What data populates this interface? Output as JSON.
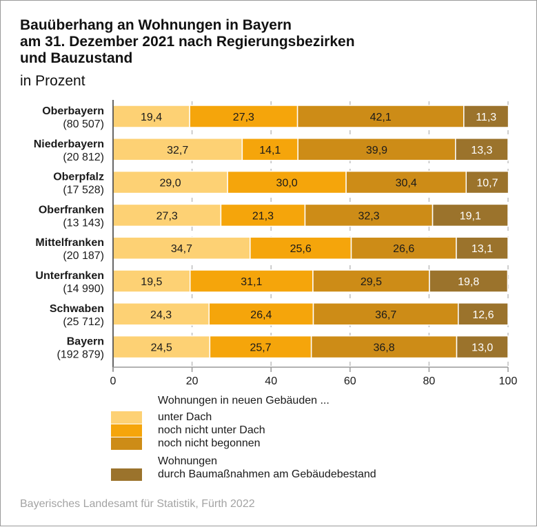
{
  "chart_data": {
    "type": "bar",
    "orientation": "horizontal",
    "stacked": true,
    "title": "Bauüberhang an Wohnungen in Bayern am 31. Dezember 2021 nach Regierungsbezirken und Bauzustand",
    "title_lines": [
      "Bauüberhang an Wohnungen in Bayern",
      "am 31. Dezember 2021 nach Regierungsbezirken",
      "und Bauzustand"
    ],
    "subtitle": "in Prozent",
    "xlabel": "",
    "ylabel": "",
    "xlim": [
      0,
      100
    ],
    "xticks": [
      0,
      20,
      40,
      60,
      80,
      100
    ],
    "grid": true,
    "categories": [
      "Oberbayern",
      "Niederbayern",
      "Oberpfalz",
      "Oberfranken",
      "Mittelfranken",
      "Unterfranken",
      "Schwaben",
      "Bayern"
    ],
    "category_counts": [
      "(80 507)",
      "(20 812)",
      "(17 528)",
      "(13 143)",
      "(20 187)",
      "(14 990)",
      "(25 712)",
      "(192 879)"
    ],
    "series": [
      {
        "name": "unter Dach",
        "color": "#fdd174",
        "label_color": "#1a1a1a",
        "values": [
          19.4,
          32.7,
          29.0,
          27.3,
          34.7,
          19.5,
          24.3,
          24.5
        ],
        "labels": [
          "19,4",
          "32,7",
          "29,0",
          "27,3",
          "34,7",
          "19,5",
          "24,3",
          "24,5"
        ]
      },
      {
        "name": "noch nicht unter Dach",
        "color": "#f5a50b",
        "label_color": "#1a1a1a",
        "values": [
          27.3,
          14.1,
          30.0,
          21.3,
          25.6,
          31.1,
          26.4,
          25.7
        ],
        "labels": [
          "27,3",
          "14,1",
          "30,0",
          "21,3",
          "25,6",
          "31,1",
          "26,4",
          "25,7"
        ]
      },
      {
        "name": "noch nicht begonnen",
        "color": "#cd8c17",
        "label_color": "#1a1a1a",
        "values": [
          42.1,
          39.9,
          30.4,
          32.3,
          26.6,
          29.5,
          36.7,
          36.8
        ],
        "labels": [
          "42,1",
          "39,9",
          "30,4",
          "32,3",
          "26,6",
          "29,5",
          "36,7",
          "36,8"
        ]
      },
      {
        "name": "durch Baumaßnahmen am Gebäudebestand",
        "color": "#9b732c",
        "label_color": "#ffffff",
        "values": [
          11.3,
          13.3,
          10.7,
          19.1,
          13.1,
          19.8,
          12.6,
          13.0
        ],
        "labels": [
          "11,3",
          "13,3",
          "10,7",
          "19,1",
          "13,1",
          "19,8",
          "12,6",
          "13,0"
        ]
      }
    ],
    "legend": {
      "placement": "bottom",
      "group1_heading": "Wohnungen in neuen Gebäuden ...",
      "group2_heading": "Wohnungen",
      "entries": [
        {
          "label": "unter Dach",
          "color": "#fdd174"
        },
        {
          "label": "noch nicht unter Dach",
          "color": "#f5a50b"
        },
        {
          "label": "noch nicht begonnen",
          "color": "#cd8c17"
        },
        {
          "label": "durch Baumaßnahmen am Gebäudebestand",
          "color": "#9b732c"
        }
      ]
    },
    "source": "Bayerisches Landesamt für Statistik, Fürth 2022"
  }
}
